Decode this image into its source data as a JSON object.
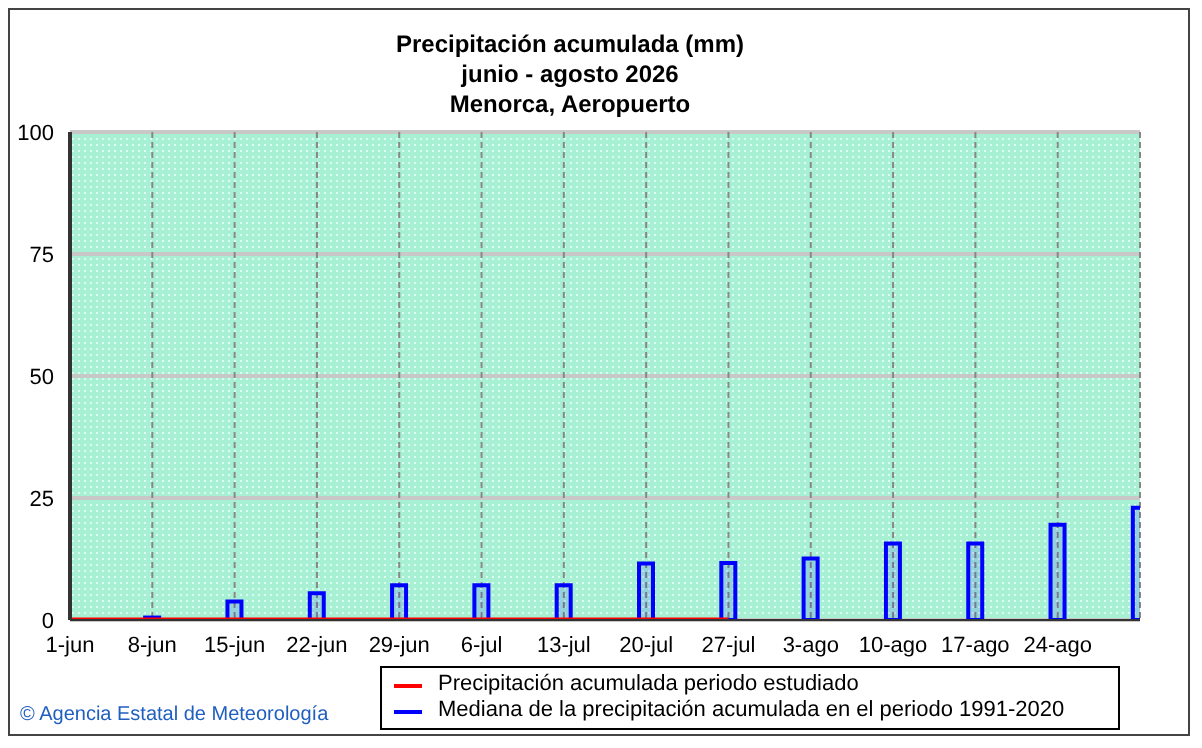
{
  "chart_data": {
    "type": "bar",
    "title": "Precipitación acumulada (mm)",
    "subtitle": "junio - agosto 2026",
    "annotations": [
      "Menorca, Aeropuerto",
      "© Agencia Estatal de Meteorología"
    ],
    "categories": [
      "1-jun",
      "8-jun",
      "15-jun",
      "22-jun",
      "29-jun",
      "6-jul",
      "13-jul",
      "20-jul",
      "27-jul",
      "3-ago",
      "10-ago",
      "17-ago",
      "24-ago",
      null
    ],
    "series": [
      {
        "name": "Precipitación acumulada periodo estudiado",
        "type": "line",
        "color": "#ff0000",
        "values": [
          0,
          0,
          0,
          0,
          0,
          0,
          0,
          0,
          0,
          null,
          null,
          null,
          null,
          null
        ]
      },
      {
        "name": "Mediana de la precipitación acumulada en el periodo 1991-2020",
        "color": "#0000ff",
        "values": [
          null,
          0.5,
          3.8,
          5.5,
          7.1,
          7.1,
          7.1,
          11.6,
          11.7,
          12.6,
          15.7,
          15.7,
          19.5,
          23.0
        ]
      }
    ],
    "ylim": [
      0,
      100
    ],
    "yticks": [
      0,
      25,
      50,
      75,
      100
    ],
    "grid": true,
    "legend": "bottom"
  }
}
